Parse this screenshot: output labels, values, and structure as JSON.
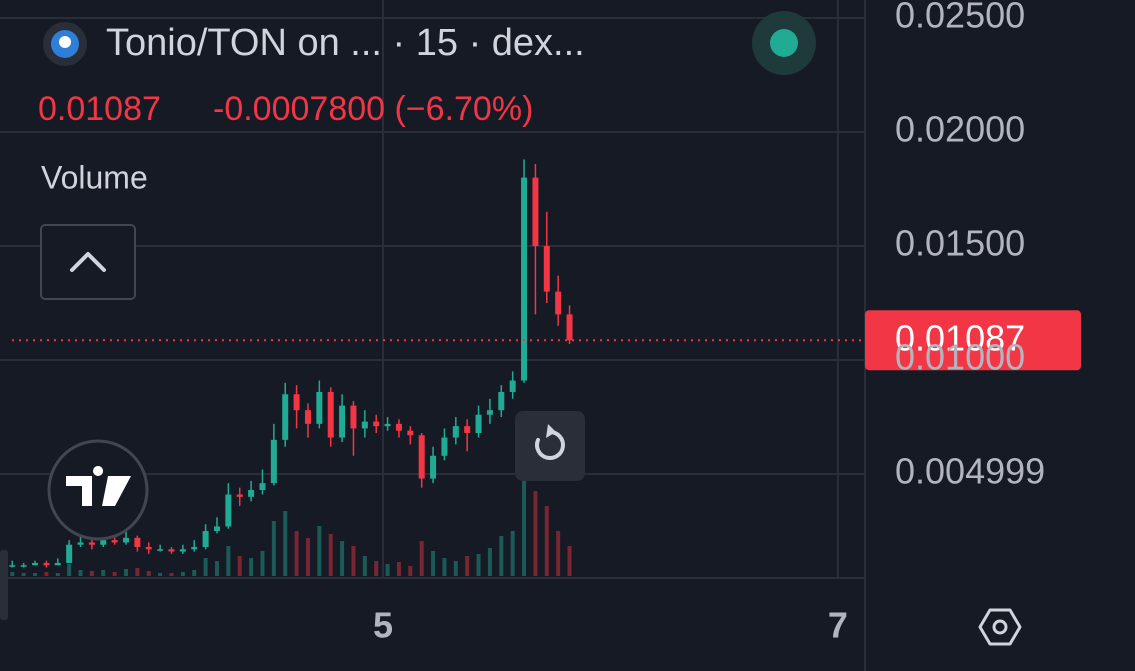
{
  "header": {
    "change": "-0.0007800 (−6.70%)"
  },
  "chart_data": {
    "type": "candlestick",
    "title": "Tonio/TON on ... · 15 · dex...",
    "volume_label": "Volume",
    "up_color": "#22ab94",
    "down_color": "#f23645",
    "grid": true,
    "xlim": [
      3.316,
      7.119
    ],
    "ylim": [
      0.00044,
      0.02579
    ],
    "xticks": [
      5,
      7
    ],
    "yticks": [
      {
        "value": 0.004999,
        "label": "0.004999"
      },
      {
        "value": 0.01,
        "label": "0.01000"
      },
      {
        "value": 0.015,
        "label": "0.01500"
      },
      {
        "value": 0.02,
        "label": "0.02000"
      },
      {
        "value": 0.025,
        "label": "0.02500"
      }
    ],
    "x": [
      3.37,
      3.42,
      3.47,
      3.52,
      3.57,
      3.62,
      3.67,
      3.72,
      3.77,
      3.82,
      3.87,
      3.92,
      3.97,
      4.02,
      4.07,
      4.12,
      4.17,
      4.22,
      4.27,
      4.32,
      4.37,
      4.42,
      4.47,
      4.52,
      4.57,
      4.62,
      4.67,
      4.72,
      4.77,
      4.82,
      4.87,
      4.92,
      4.97,
      5.02,
      5.07,
      5.12,
      5.17,
      5.22,
      5.27,
      5.32,
      5.37,
      5.42,
      5.47,
      5.52,
      5.57,
      5.62,
      5.67,
      5.72,
      5.77,
      5.82
    ],
    "open": [
      0.001,
      0.001,
      0.001,
      0.0011,
      0.001,
      0.0011,
      0.0019,
      0.002,
      0.0019,
      0.0021,
      0.002,
      0.0022,
      0.0018,
      0.0017,
      0.0017,
      0.0016,
      0.0017,
      0.0018,
      0.0025,
      0.0027,
      0.0041,
      0.004,
      0.0043,
      0.0046,
      0.0065,
      0.0085,
      0.0078,
      0.0072,
      0.0086,
      0.0066,
      0.008,
      0.007,
      0.0073,
      0.0071,
      0.0072,
      0.0069,
      0.0067,
      0.0048,
      0.0058,
      0.0066,
      0.0071,
      0.0068,
      0.0076,
      0.0078,
      0.0086,
      0.0091,
      0.018,
      0.015,
      0.013,
      0.012
    ],
    "high": [
      0.0012,
      0.0011,
      0.0012,
      0.0012,
      0.0013,
      0.0021,
      0.0023,
      0.0022,
      0.0024,
      0.0023,
      0.0026,
      0.0023,
      0.002,
      0.0019,
      0.0018,
      0.0019,
      0.0021,
      0.0028,
      0.0031,
      0.0046,
      0.0044,
      0.0047,
      0.0052,
      0.0072,
      0.009,
      0.0089,
      0.0081,
      0.0091,
      0.0088,
      0.0085,
      0.0082,
      0.0078,
      0.0076,
      0.0075,
      0.0074,
      0.0071,
      0.0068,
      0.0062,
      0.007,
      0.0075,
      0.0074,
      0.008,
      0.0083,
      0.0089,
      0.0095,
      0.0188,
      0.0186,
      0.0165,
      0.0137,
      0.0124
    ],
    "low": [
      0.0009,
      0.0009,
      0.001,
      0.0009,
      0.001,
      0.0011,
      0.0018,
      0.0017,
      0.0018,
      0.0019,
      0.0019,
      0.0016,
      0.0015,
      0.0016,
      0.0015,
      0.0015,
      0.0016,
      0.0017,
      0.0024,
      0.0026,
      0.0036,
      0.0038,
      0.0041,
      0.0045,
      0.0062,
      0.007,
      0.0066,
      0.007,
      0.0062,
      0.0064,
      0.0058,
      0.0066,
      0.0068,
      0.0069,
      0.0066,
      0.0063,
      0.0044,
      0.0046,
      0.0056,
      0.0063,
      0.006,
      0.0066,
      0.0072,
      0.0075,
      0.0083,
      0.009,
      0.012,
      0.0125,
      0.0115,
      0.0107
    ],
    "close": [
      0.001,
      0.001,
      0.0011,
      0.001,
      0.0011,
      0.0019,
      0.002,
      0.0019,
      0.0021,
      0.002,
      0.0022,
      0.0018,
      0.0017,
      0.0017,
      0.0016,
      0.0017,
      0.0018,
      0.0025,
      0.0027,
      0.0041,
      0.004,
      0.0043,
      0.0046,
      0.0065,
      0.0085,
      0.0078,
      0.0072,
      0.0086,
      0.0066,
      0.008,
      0.007,
      0.0073,
      0.0071,
      0.0072,
      0.0069,
      0.0067,
      0.0048,
      0.0058,
      0.0066,
      0.0071,
      0.0068,
      0.0076,
      0.0078,
      0.0086,
      0.0091,
      0.018,
      0.015,
      0.013,
      0.012,
      0.01087
    ],
    "volume": [
      4,
      3,
      3,
      4,
      3,
      12,
      6,
      5,
      6,
      4,
      7,
      8,
      5,
      3,
      3,
      4,
      6,
      18,
      15,
      30,
      20,
      18,
      25,
      55,
      65,
      45,
      38,
      50,
      42,
      35,
      30,
      20,
      15,
      12,
      14,
      10,
      35,
      25,
      18,
      15,
      20,
      22,
      28,
      40,
      45,
      95,
      85,
      70,
      45,
      30
    ]
  }
}
